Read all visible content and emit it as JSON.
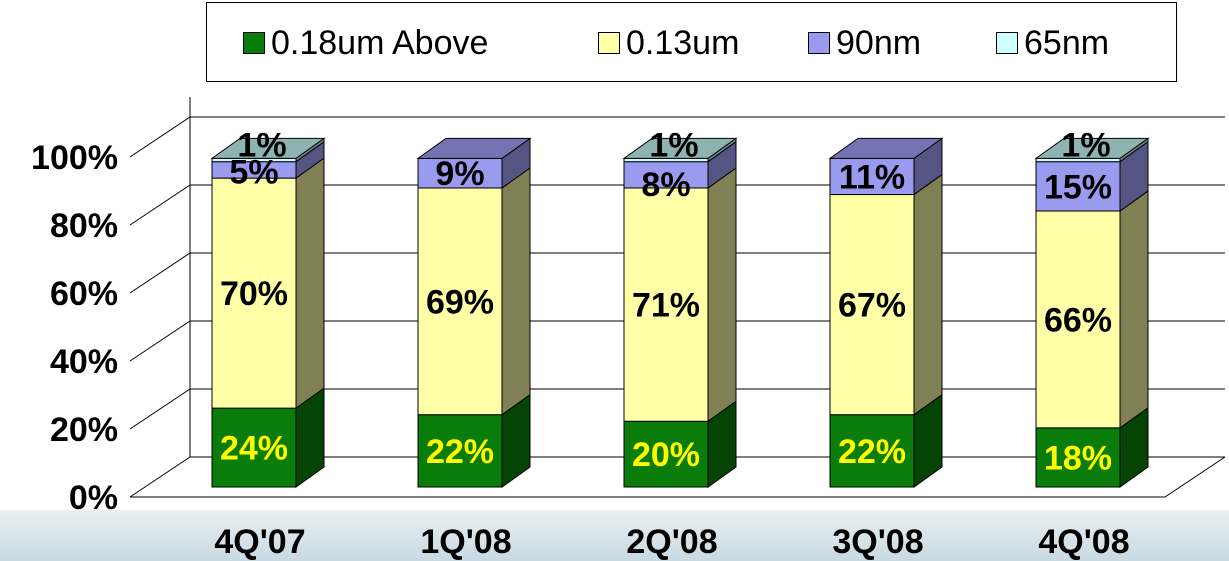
{
  "chart_data": {
    "type": "bar",
    "stacked": true,
    "three_d": true,
    "categories": [
      "4Q'07",
      "1Q'08",
      "2Q'08",
      "3Q'08",
      "4Q'08"
    ],
    "series": [
      {
        "name": "0.18um Above",
        "color": "#0a7c0a",
        "values": [
          24,
          22,
          20,
          22,
          18
        ],
        "labels": [
          "24%",
          "22%",
          "20%",
          "22%",
          "18%"
        ]
      },
      {
        "name": "0.13um",
        "color": "#ffffa8",
        "values": [
          70,
          69,
          71,
          67,
          66
        ],
        "labels": [
          "70%",
          "69%",
          "71%",
          "67%",
          "66%"
        ]
      },
      {
        "name": "90nm",
        "color": "#9a9aee",
        "values": [
          5,
          9,
          8,
          11,
          15
        ],
        "labels": [
          "5%",
          "9%",
          "8%",
          "11%",
          "15%"
        ]
      },
      {
        "name": "65nm",
        "color": "#ccffff",
        "values": [
          1,
          0,
          1,
          0,
          1
        ],
        "labels": [
          "1%",
          "",
          "1%",
          "",
          "1%"
        ]
      }
    ],
    "y_ticks": [
      "0%",
      "20%",
      "40%",
      "60%",
      "80%",
      "100%"
    ],
    "ylim": [
      0,
      100
    ],
    "grid": true,
    "legend_position": "top"
  }
}
